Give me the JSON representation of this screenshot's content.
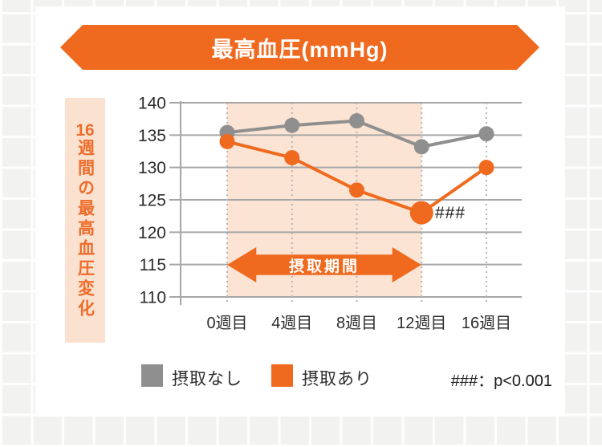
{
  "banner": {
    "title": "最高血圧(mmHg)"
  },
  "side_label": {
    "number": "16",
    "text": "週間の最高血圧変化"
  },
  "intake_arrow": {
    "label": "摂取期間"
  },
  "legend": {
    "items": [
      {
        "label": "摂取なし",
        "color": "#8f8f8f"
      },
      {
        "label": "摂取あり",
        "color": "#ef6a1e"
      }
    ],
    "note": "###：p<0.001"
  },
  "colors": {
    "accent_orange": "#ef6a1e",
    "series_gray": "#8f8f8f",
    "shaded_region": "#fce4d5",
    "side_label_bg": "#fbe1d0",
    "gridline": "#a6a6a6",
    "dotted_line": "#b4b4b4",
    "text": "#2d2d2d"
  },
  "chart_data": {
    "type": "line",
    "title": "最高血圧(mmHg)",
    "ylabel": "16週間の最高血圧変化",
    "categories": [
      "0週目",
      "4週目",
      "8週目",
      "12週目",
      "16週目"
    ],
    "y_ticks": [
      140,
      135,
      130,
      125,
      120,
      115,
      110
    ],
    "ylim": [
      110,
      140
    ],
    "grid": true,
    "legend_position": "bottom",
    "series": [
      {
        "name": "摂取なし",
        "color": "#8f8f8f",
        "values": [
          135.4,
          136.5,
          137.2,
          133.2,
          135.2
        ]
      },
      {
        "name": "摂取あり",
        "color": "#ef6a1e",
        "values": [
          134.0,
          131.5,
          126.5,
          123.0,
          130.0
        ],
        "emphasis_index": 3,
        "emphasis_label": "###"
      }
    ],
    "shaded_region": {
      "from": "0週目",
      "to": "12週目",
      "label": "摂取期間",
      "color": "#fce4d5"
    },
    "significance_note": "###：p<0.001"
  }
}
